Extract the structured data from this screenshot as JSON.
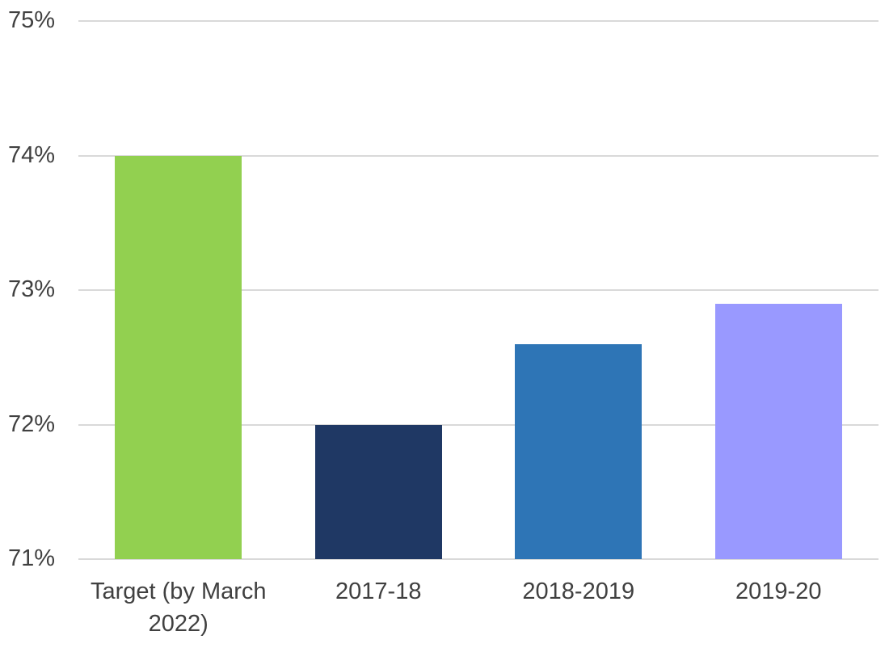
{
  "chart_data": {
    "type": "bar",
    "categories": [
      "Target (by March 2022)",
      "2017-18",
      "2018-2019",
      "2019-20"
    ],
    "values": [
      74,
      72,
      72.6,
      72.9
    ],
    "bar_colors": [
      "#92D050",
      "#1F3864",
      "#2E75B6",
      "#9999FF"
    ],
    "title": "",
    "xlabel": "",
    "ylabel": "",
    "ylim": [
      71,
      75
    ],
    "ytick_values": [
      75,
      74,
      73,
      72,
      71
    ],
    "ytick_labels": [
      "75%",
      "74%",
      "73%",
      "72%",
      "71%"
    ],
    "grid": true,
    "legend": false,
    "gridline_color": "#D9D9D9",
    "axis_text_color": "#404040",
    "background_color": "#FFFFFF"
  }
}
